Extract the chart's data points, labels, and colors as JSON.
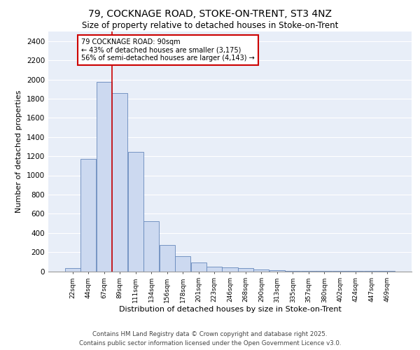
{
  "title_line1": "79, COCKNAGE ROAD, STOKE-ON-TRENT, ST3 4NZ",
  "title_line2": "Size of property relative to detached houses in Stoke-on-Trent",
  "xlabel": "Distribution of detached houses by size in Stoke-on-Trent",
  "ylabel": "Number of detached properties",
  "bin_labels": [
    "22sqm",
    "44sqm",
    "67sqm",
    "89sqm",
    "111sqm",
    "134sqm",
    "156sqm",
    "178sqm",
    "201sqm",
    "223sqm",
    "246sqm",
    "268sqm",
    "290sqm",
    "313sqm",
    "335sqm",
    "357sqm",
    "380sqm",
    "402sqm",
    "424sqm",
    "447sqm",
    "469sqm"
  ],
  "bar_heights": [
    30,
    1170,
    1975,
    1860,
    1245,
    520,
    275,
    155,
    90,
    45,
    40,
    35,
    18,
    8,
    5,
    3,
    2,
    1,
    1,
    1,
    1
  ],
  "bar_color": "#ccd9f0",
  "bar_edge_color": "#6688bb",
  "background_color": "#e8eef8",
  "grid_color": "#ffffff",
  "annotation_text": "79 COCKNAGE ROAD: 90sqm\n← 43% of detached houses are smaller (3,175)\n56% of semi-detached houses are larger (4,143) →",
  "annotation_box_color": "#ffffff",
  "annotation_box_edge": "#cc0000",
  "red_line_color": "#cc0000",
  "ylim": [
    0,
    2500
  ],
  "yticks": [
    0,
    200,
    400,
    600,
    800,
    1000,
    1200,
    1400,
    1600,
    1800,
    2000,
    2200,
    2400
  ],
  "footer_line1": "Contains HM Land Registry data © Crown copyright and database right 2025.",
  "footer_line2": "Contains public sector information licensed under the Open Government Licence v3.0."
}
